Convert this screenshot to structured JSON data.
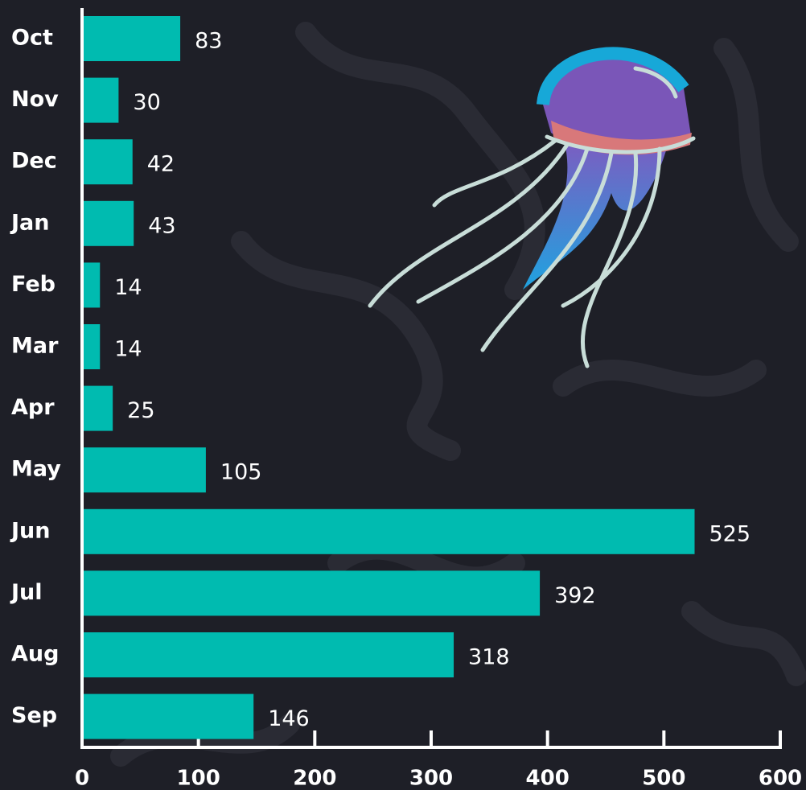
{
  "chart_data": {
    "type": "bar",
    "orientation": "horizontal",
    "categories": [
      "Oct",
      "Nov",
      "Dec",
      "Jan",
      "Feb",
      "Mar",
      "Apr",
      "May",
      "Jun",
      "Jul",
      "Aug",
      "Sep"
    ],
    "values": [
      83,
      30,
      42,
      43,
      14,
      14,
      25,
      105,
      525,
      392,
      318,
      146
    ],
    "color": "#00bbb0",
    "xlim": [
      0,
      600
    ],
    "xticks": [
      0,
      100,
      200,
      300,
      400,
      500,
      600
    ]
  }
}
